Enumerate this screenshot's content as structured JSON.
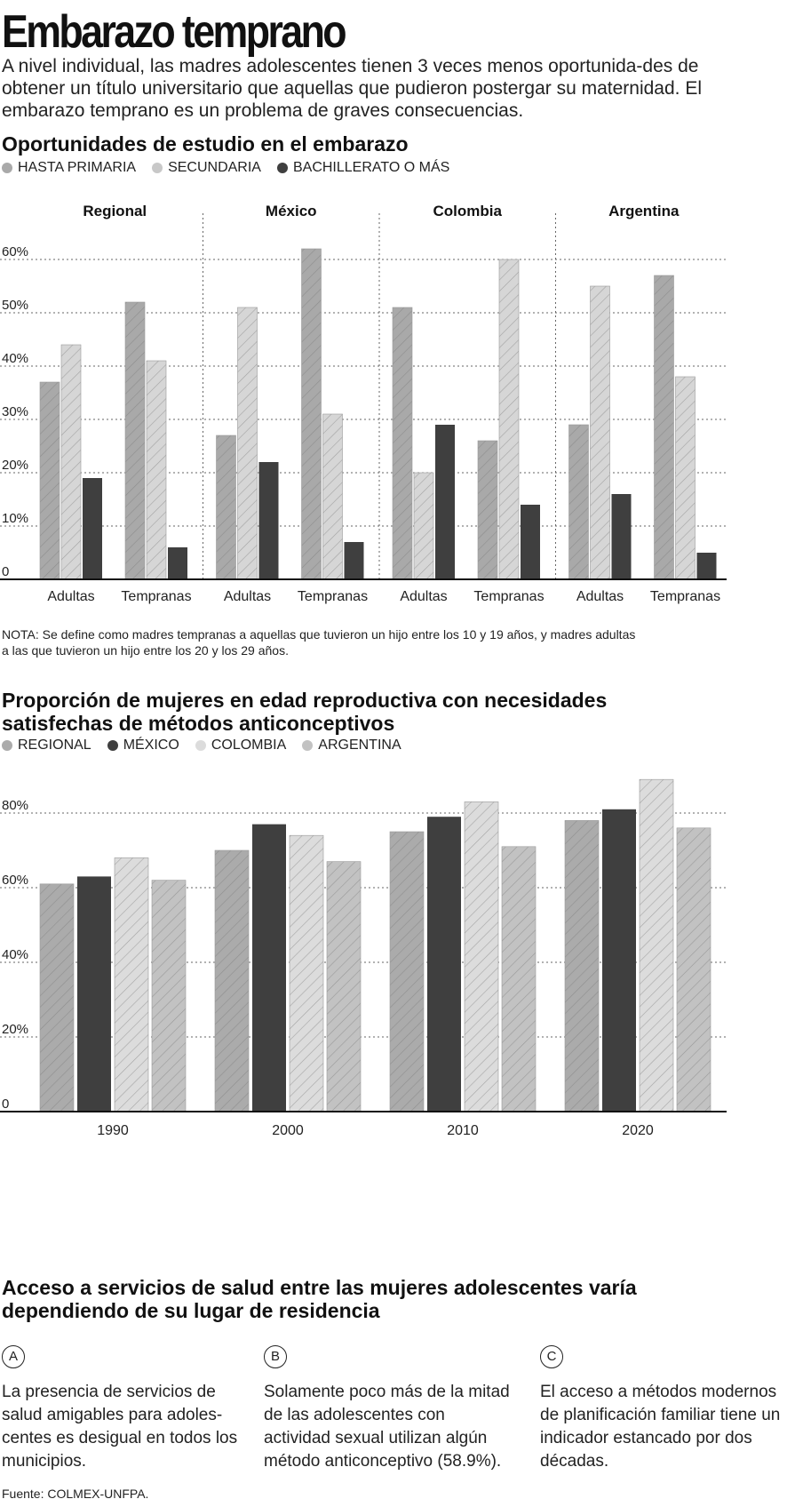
{
  "header": {
    "title": "Embarazo temprano",
    "subtitle": "A nivel individual, las madres adolescentes tienen 3 veces menos oportunida-des de obtener un título universitario que aquellas que pudieron postergar su maternidad. El embarazo temprano es un problema de graves consecuencias."
  },
  "colors": {
    "primaria": "#a9a9a9",
    "secundaria": "#d6d6d6",
    "bachillerato": "#3f3f3f",
    "regional": "#ababab",
    "mexico": "#3f3f3f",
    "colombia": "#dcdcdc",
    "argentina": "#c2c2c2"
  },
  "chart1": {
    "title": "Oportunidades de estudio en el embarazo",
    "legend": [
      "HASTA PRIMARIA",
      "SECUNDARIA",
      "BACHILLERATO O MÁS"
    ],
    "note": "NOTA: Se define como madres tempranas a aquellas que tuvieron un hijo entre los 10 y 19 años, y madres adultas a las que tuvieron un hijo entre los 20 y los 29 años."
  },
  "chart2": {
    "title": "Proporción de mujeres en edad reproductiva con necesidades satisfechas de métodos anticonceptivos",
    "legend": [
      "REGIONAL",
      "MÉXICO",
      "COLOMBIA",
      "ARGENTINA"
    ]
  },
  "section3": {
    "title": "Acceso a servicios de salud entre las mujeres adolescentes varía dependiendo de su lugar de residencia",
    "columns": [
      {
        "letter": "A",
        "text": "La presencia de servicios de salud amigables para adoles-centes es desigual en todos los municipios."
      },
      {
        "letter": "B",
        "text": "Solamente poco más de la mitad de las adolescentes con actividad sexual utilizan algún método anticonceptivo (58.9%)."
      },
      {
        "letter": "C",
        "text": "El acceso a métodos modernos de planificación familiar tiene un indicador estancado por dos décadas."
      }
    ]
  },
  "source": "Fuente: COLMEX-UNFPA.",
  "chart_data": [
    {
      "type": "bar",
      "title": "Oportunidades de estudio en el embarazo",
      "groups": [
        "Regional",
        "México",
        "Colombia",
        "Argentina"
      ],
      "categories": [
        "Adultas",
        "Tempranas"
      ],
      "y_ticks": [
        "0",
        "10%",
        "20%",
        "30%",
        "40%",
        "50%",
        "60%"
      ],
      "ylim": [
        0,
        62
      ],
      "series": [
        {
          "name": "HASTA PRIMARIA",
          "values": [
            [
              37,
              52
            ],
            [
              27,
              62
            ],
            [
              51,
              26
            ],
            [
              29,
              57
            ]
          ]
        },
        {
          "name": "SECUNDARIA",
          "values": [
            [
              44,
              41
            ],
            [
              51,
              31
            ],
            [
              20,
              60
            ],
            [
              55,
              38
            ]
          ]
        },
        {
          "name": "BACHILLERATO O MÁS",
          "values": [
            [
              19,
              6
            ],
            [
              22,
              7
            ],
            [
              29,
              14
            ],
            [
              16,
              5
            ]
          ]
        }
      ]
    },
    {
      "type": "bar",
      "title": "Proporción de mujeres en edad reproductiva con necesidades satisfechas de métodos anticonceptivos",
      "categories": [
        "1990",
        "2000",
        "2010",
        "2020"
      ],
      "y_ticks": [
        "0",
        "20%",
        "40%",
        "60%",
        "80%"
      ],
      "ylim": [
        0,
        89
      ],
      "series": [
        {
          "name": "REGIONAL",
          "values": [
            61,
            70,
            75,
            78
          ]
        },
        {
          "name": "MÉXICO",
          "values": [
            63,
            77,
            79,
            81
          ]
        },
        {
          "name": "COLOMBIA",
          "values": [
            68,
            74,
            83,
            89
          ]
        },
        {
          "name": "ARGENTINA",
          "values": [
            62,
            67,
            71,
            76
          ]
        }
      ]
    }
  ]
}
